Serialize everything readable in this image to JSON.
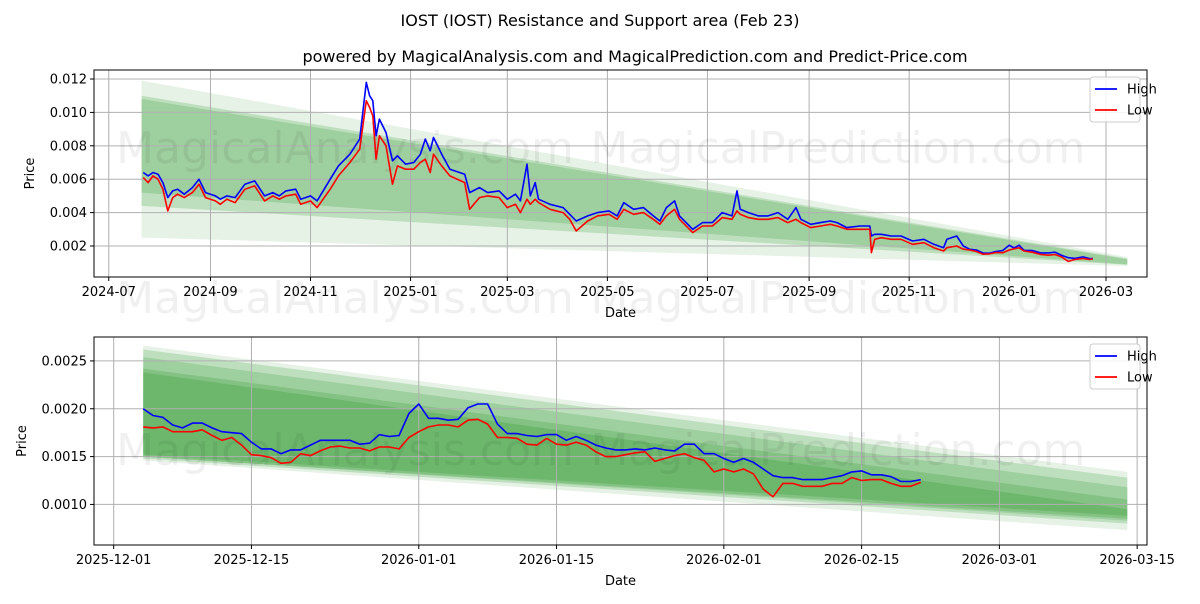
{
  "title": "IOST (IOST) Resistance and Support area (Feb 23)",
  "subtitle": "powered by MagicalAnalysis.com and MagicalPrediction.com and Predict-Price.com",
  "watermarks": [
    "MagicalAnalysis.com",
    "MagicalPrediction.com"
  ],
  "colors": {
    "high": "#0000ff",
    "low": "#ff0000",
    "band": "#008000",
    "grid": "#b0b0b0"
  },
  "chart_data": [
    {
      "type": "line",
      "xlabel": "Date",
      "ylabel": "Price",
      "grid": true,
      "legend": {
        "placement": "top-right",
        "entries": [
          "High",
          "Low"
        ]
      },
      "xlim": [
        "2024-06-22",
        "2026-03-26"
      ],
      "ylim": [
        0.000144,
        0.01254
      ],
      "xticks": [
        {
          "date": "2024-07-01",
          "label": "2024-07"
        },
        {
          "date": "2024-09-01",
          "label": "2024-09"
        },
        {
          "date": "2024-11-01",
          "label": "2024-11"
        },
        {
          "date": "2025-01-01",
          "label": "2025-01"
        },
        {
          "date": "2025-03-01",
          "label": "2025-03"
        },
        {
          "date": "2025-05-01",
          "label": "2025-05"
        },
        {
          "date": "2025-07-01",
          "label": "2025-07"
        },
        {
          "date": "2025-09-01",
          "label": "2025-09"
        },
        {
          "date": "2025-11-01",
          "label": "2025-11"
        },
        {
          "date": "2026-01-01",
          "label": "2026-01"
        },
        {
          "date": "2026-03-01",
          "label": "2026-03"
        }
      ],
      "yticks": [
        {
          "value": 0.002,
          "label": "0.002"
        },
        {
          "value": 0.004,
          "label": "0.004"
        },
        {
          "value": 0.006,
          "label": "0.006"
        },
        {
          "value": 0.008,
          "label": "0.008"
        },
        {
          "value": 0.01,
          "label": "0.010"
        },
        {
          "value": 0.012,
          "label": "0.012"
        }
      ],
      "bands": {
        "start": "2024-07-21",
        "end": "2026-03-14",
        "items": [
          {
            "upper": [
              0.0119,
              0.00134
            ],
            "lower": [
              0.0025,
              0.0008
            ]
          },
          {
            "upper": [
              0.011,
              0.00125
            ],
            "lower": [
              0.0044,
              0.00088
            ]
          },
          {
            "upper": [
              0.0108,
              0.0012
            ],
            "lower": [
              0.0052,
              0.0009
            ]
          }
        ]
      },
      "points_columns": [
        "date",
        "high",
        "low"
      ],
      "points": [
        [
          "2024-07-22",
          0.0064,
          0.0061
        ],
        [
          "2024-07-25",
          0.0062,
          0.0058
        ],
        [
          "2024-07-28",
          0.0064,
          0.0062
        ],
        [
          "2024-07-31",
          0.0063,
          0.006
        ],
        [
          "2024-08-03",
          0.0058,
          0.0054
        ],
        [
          "2024-08-06",
          0.0049,
          0.0041
        ],
        [
          "2024-08-09",
          0.0053,
          0.0049
        ],
        [
          "2024-08-12",
          0.0054,
          0.0051
        ],
        [
          "2024-08-16",
          0.0051,
          0.0049
        ],
        [
          "2024-08-21",
          0.0055,
          0.0052
        ],
        [
          "2024-08-25",
          0.006,
          0.0057
        ],
        [
          "2024-08-29",
          0.0052,
          0.0049
        ],
        [
          "2024-09-04",
          0.005,
          0.0047
        ],
        [
          "2024-09-07",
          0.0048,
          0.0045
        ],
        [
          "2024-09-11",
          0.005,
          0.0048
        ],
        [
          "2024-09-16",
          0.0049,
          0.0046
        ],
        [
          "2024-09-22",
          0.0057,
          0.0054
        ],
        [
          "2024-09-28",
          0.0059,
          0.0056
        ],
        [
          "2024-10-04",
          0.005,
          0.0047
        ],
        [
          "2024-10-09",
          0.0052,
          0.005
        ],
        [
          "2024-10-13",
          0.005,
          0.0048
        ],
        [
          "2024-10-17",
          0.0053,
          0.005
        ],
        [
          "2024-10-23",
          0.0054,
          0.0051
        ],
        [
          "2024-10-26",
          0.0048,
          0.0045
        ],
        [
          "2024-11-01",
          0.005,
          0.0047
        ],
        [
          "2024-11-05",
          0.0047,
          0.0043
        ],
        [
          "2024-11-13",
          0.006,
          0.0054
        ],
        [
          "2024-11-18",
          0.0068,
          0.0062
        ],
        [
          "2024-11-25",
          0.0075,
          0.007
        ],
        [
          "2024-12-01",
          0.0084,
          0.0078
        ],
        [
          "2024-12-05",
          0.0118,
          0.0107
        ],
        [
          "2024-12-07",
          0.011,
          0.0103
        ],
        [
          "2024-12-09",
          0.0107,
          0.0098
        ],
        [
          "2024-12-11",
          0.0086,
          0.0072
        ],
        [
          "2024-12-13",
          0.0096,
          0.0086
        ],
        [
          "2024-12-17",
          0.0088,
          0.008
        ],
        [
          "2024-12-21",
          0.0071,
          0.0057
        ],
        [
          "2024-12-24",
          0.0074,
          0.0068
        ],
        [
          "2024-12-29",
          0.0069,
          0.0066
        ],
        [
          "2025-01-03",
          0.007,
          0.0066
        ],
        [
          "2025-01-07",
          0.0075,
          0.007
        ],
        [
          "2025-01-10",
          0.0084,
          0.0072
        ],
        [
          "2025-01-13",
          0.0077,
          0.0064
        ],
        [
          "2025-01-15",
          0.0085,
          0.0075
        ],
        [
          "2025-01-20",
          0.0075,
          0.0068
        ],
        [
          "2025-01-25",
          0.0066,
          0.0062
        ],
        [
          "2025-02-03",
          0.0063,
          0.0058
        ],
        [
          "2025-02-06",
          0.0052,
          0.0042
        ],
        [
          "2025-02-12",
          0.0055,
          0.0049
        ],
        [
          "2025-02-17",
          0.0052,
          0.005
        ],
        [
          "2025-02-24",
          0.0053,
          0.0049
        ],
        [
          "2025-03-01",
          0.0048,
          0.0043
        ],
        [
          "2025-03-06",
          0.0051,
          0.0045
        ],
        [
          "2025-03-09",
          0.0047,
          0.004
        ],
        [
          "2025-03-13",
          0.0069,
          0.0048
        ],
        [
          "2025-03-15",
          0.005,
          0.0045
        ],
        [
          "2025-03-18",
          0.0058,
          0.0048
        ],
        [
          "2025-03-20",
          0.0048,
          0.0046
        ],
        [
          "2025-03-27",
          0.0045,
          0.0042
        ],
        [
          "2025-04-04",
          0.0043,
          0.004
        ],
        [
          "2025-04-08",
          0.0039,
          0.0036
        ],
        [
          "2025-04-12",
          0.0035,
          0.0029
        ],
        [
          "2025-04-19",
          0.0038,
          0.0035
        ],
        [
          "2025-04-25",
          0.004,
          0.0038
        ],
        [
          "2025-05-02",
          0.0041,
          0.0039
        ],
        [
          "2025-05-07",
          0.0038,
          0.0036
        ],
        [
          "2025-05-11",
          0.0046,
          0.0042
        ],
        [
          "2025-05-17",
          0.0042,
          0.0039
        ],
        [
          "2025-05-23",
          0.0043,
          0.004
        ],
        [
          "2025-05-29",
          0.0038,
          0.0036
        ],
        [
          "2025-06-02",
          0.0035,
          0.0033
        ],
        [
          "2025-06-06",
          0.0043,
          0.0038
        ],
        [
          "2025-06-11",
          0.0047,
          0.0042
        ],
        [
          "2025-06-14",
          0.0038,
          0.0036
        ],
        [
          "2025-06-22",
          0.003,
          0.0028
        ],
        [
          "2025-06-28",
          0.0034,
          0.0032
        ],
        [
          "2025-07-04",
          0.0034,
          0.0032
        ],
        [
          "2025-07-10",
          0.004,
          0.0037
        ],
        [
          "2025-07-16",
          0.0038,
          0.0036
        ],
        [
          "2025-07-19",
          0.0053,
          0.0041
        ],
        [
          "2025-07-21",
          0.0042,
          0.0039
        ],
        [
          "2025-07-26",
          0.004,
          0.0037
        ],
        [
          "2025-08-01",
          0.0038,
          0.0036
        ],
        [
          "2025-08-07",
          0.0038,
          0.0036
        ],
        [
          "2025-08-13",
          0.004,
          0.0037
        ],
        [
          "2025-08-19",
          0.0036,
          0.0034
        ],
        [
          "2025-08-24",
          0.0043,
          0.0036
        ],
        [
          "2025-08-27",
          0.0036,
          0.0034
        ],
        [
          "2025-09-02",
          0.0033,
          0.0031
        ],
        [
          "2025-09-08",
          0.0034,
          0.0032
        ],
        [
          "2025-09-14",
          0.0035,
          0.0033
        ],
        [
          "2025-09-18",
          0.0034,
          0.0032
        ],
        [
          "2025-09-24",
          0.0031,
          0.003
        ],
        [
          "2025-10-02",
          0.0032,
          0.003
        ],
        [
          "2025-10-08",
          0.0032,
          0.003
        ],
        [
          "2025-10-09",
          0.0026,
          0.0016
        ],
        [
          "2025-10-11",
          0.0027,
          0.0024
        ],
        [
          "2025-10-15",
          0.0027,
          0.0025
        ],
        [
          "2025-10-21",
          0.0026,
          0.0024
        ],
        [
          "2025-10-27",
          0.0026,
          0.0024
        ],
        [
          "2025-11-03",
          0.0023,
          0.0021
        ],
        [
          "2025-11-10",
          0.0024,
          0.0022
        ],
        [
          "2025-11-16",
          0.0021,
          0.0019
        ],
        [
          "2025-11-22",
          0.0019,
          0.0017
        ],
        [
          "2025-11-24",
          0.0024,
          0.0019
        ],
        [
          "2025-11-30",
          0.0026,
          0.002
        ],
        [
          "2025-12-04",
          0.002,
          0.00181
        ],
        [
          "2025-12-08",
          0.0018,
          0.00176
        ],
        [
          "2025-12-12",
          0.00176,
          0.00167
        ],
        [
          "2025-12-16",
          0.00158,
          0.00151
        ],
        [
          "2025-12-20",
          0.00157,
          0.00153
        ],
        [
          "2025-12-24",
          0.00167,
          0.00161
        ],
        [
          "2025-12-28",
          0.00173,
          0.0016
        ],
        [
          "2026-01-01",
          0.00205,
          0.00176
        ],
        [
          "2026-01-04",
          0.00188,
          0.00183
        ],
        [
          "2026-01-07",
          0.00205,
          0.00189
        ],
        [
          "2026-01-10",
          0.00174,
          0.0017
        ],
        [
          "2026-01-15",
          0.00173,
          0.00163
        ],
        [
          "2026-01-20",
          0.00159,
          0.0015
        ],
        [
          "2026-01-25",
          0.00159,
          0.00145
        ],
        [
          "2026-01-29",
          0.00163,
          0.00149
        ],
        [
          "2026-02-02",
          0.00144,
          0.00134
        ],
        [
          "2026-02-06",
          0.0013,
          0.00108
        ],
        [
          "2026-02-10",
          0.00126,
          0.00119
        ],
        [
          "2026-02-15",
          0.00135,
          0.00125
        ],
        [
          "2026-02-19",
          0.00124,
          0.00119
        ],
        [
          "2026-02-21",
          0.00126,
          0.00123
        ]
      ]
    },
    {
      "type": "line",
      "xlabel": "Date",
      "ylabel": "Price",
      "grid": true,
      "legend": {
        "placement": "top-right",
        "entries": [
          "High",
          "Low"
        ]
      },
      "xlim": [
        "2025-11-29",
        "2026-03-16"
      ],
      "ylim": [
        0.000576,
        0.00275
      ],
      "xticks": [
        {
          "date": "2025-12-01",
          "label": "2025-12-01"
        },
        {
          "date": "2025-12-15",
          "label": "2025-12-15"
        },
        {
          "date": "2026-01-01",
          "label": "2026-01-01"
        },
        {
          "date": "2026-01-15",
          "label": "2026-01-15"
        },
        {
          "date": "2026-02-01",
          "label": "2026-02-01"
        },
        {
          "date": "2026-02-15",
          "label": "2026-02-15"
        },
        {
          "date": "2026-03-01",
          "label": "2026-03-01"
        },
        {
          "date": "2026-03-15",
          "label": "2026-03-15"
        }
      ],
      "yticks": [
        {
          "value": 0.001,
          "label": "0.0010"
        },
        {
          "value": 0.0015,
          "label": "0.0015"
        },
        {
          "value": 0.002,
          "label": "0.0020"
        },
        {
          "value": 0.0025,
          "label": "0.0025"
        }
      ],
      "bands": {
        "start": "2025-12-04",
        "end": "2026-03-14",
        "items": [
          {
            "upper": [
              0.00266,
              0.00134
            ],
            "lower": [
              0.00146,
              0.00073
            ]
          },
          {
            "upper": [
              0.00262,
              0.00128
            ],
            "lower": [
              0.00148,
              0.0008
            ]
          },
          {
            "upper": [
              0.00254,
              0.00118
            ],
            "lower": [
              0.0015,
              0.00083
            ]
          },
          {
            "upper": [
              0.00242,
              0.00105
            ],
            "lower": [
              0.0015,
              0.00085
            ]
          },
          {
            "upper": [
              0.00238,
              0.00095
            ],
            "lower": [
              0.00152,
              0.00088
            ]
          }
        ]
      },
      "daily_start": "2025-12-04",
      "high": [
        0.002,
        0.00193,
        0.00191,
        0.00183,
        0.0018,
        0.00185,
        0.00185,
        0.0018,
        0.00176,
        0.00175,
        0.00174,
        0.00165,
        0.00158,
        0.00158,
        0.00153,
        0.00157,
        0.00157,
        0.00162,
        0.00167,
        0.00167,
        0.00167,
        0.00167,
        0.00163,
        0.00164,
        0.00173,
        0.00171,
        0.00172,
        0.00195,
        0.00205,
        0.0019,
        0.0019,
        0.00188,
        0.00189,
        0.00201,
        0.00205,
        0.00205,
        0.00184,
        0.00174,
        0.00174,
        0.00172,
        0.00171,
        0.00173,
        0.00173,
        0.00167,
        0.00171,
        0.00167,
        0.00162,
        0.00159,
        0.00157,
        0.00157,
        0.00158,
        0.00157,
        0.00159,
        0.00157,
        0.00156,
        0.00163,
        0.00163,
        0.00153,
        0.00153,
        0.00148,
        0.00144,
        0.00148,
        0.00144,
        0.00137,
        0.0013,
        0.00128,
        0.00128,
        0.00126,
        0.00126,
        0.00126,
        0.00128,
        0.0013,
        0.00134,
        0.00135,
        0.00131,
        0.00131,
        0.00129,
        0.00124,
        0.00124,
        0.00126
      ],
      "low": [
        0.00181,
        0.0018,
        0.00181,
        0.00176,
        0.00176,
        0.00176,
        0.00178,
        0.00172,
        0.00167,
        0.0017,
        0.00162,
        0.00152,
        0.00151,
        0.00149,
        0.00143,
        0.00144,
        0.00153,
        0.00151,
        0.00156,
        0.0016,
        0.00161,
        0.00159,
        0.00159,
        0.00156,
        0.0016,
        0.0016,
        0.00158,
        0.0017,
        0.00176,
        0.00181,
        0.00183,
        0.00183,
        0.00181,
        0.00188,
        0.00189,
        0.00184,
        0.0017,
        0.0017,
        0.00169,
        0.00163,
        0.00162,
        0.00169,
        0.00163,
        0.00162,
        0.00165,
        0.00162,
        0.00155,
        0.0015,
        0.0015,
        0.00152,
        0.00154,
        0.00155,
        0.00145,
        0.00148,
        0.00151,
        0.00153,
        0.00149,
        0.00146,
        0.00134,
        0.00137,
        0.00134,
        0.00137,
        0.00132,
        0.00116,
        0.00108,
        0.00122,
        0.00122,
        0.00119,
        0.00119,
        0.00119,
        0.00122,
        0.00122,
        0.00128,
        0.00125,
        0.00126,
        0.00126,
        0.00122,
        0.00119,
        0.00119,
        0.00123
      ]
    }
  ]
}
